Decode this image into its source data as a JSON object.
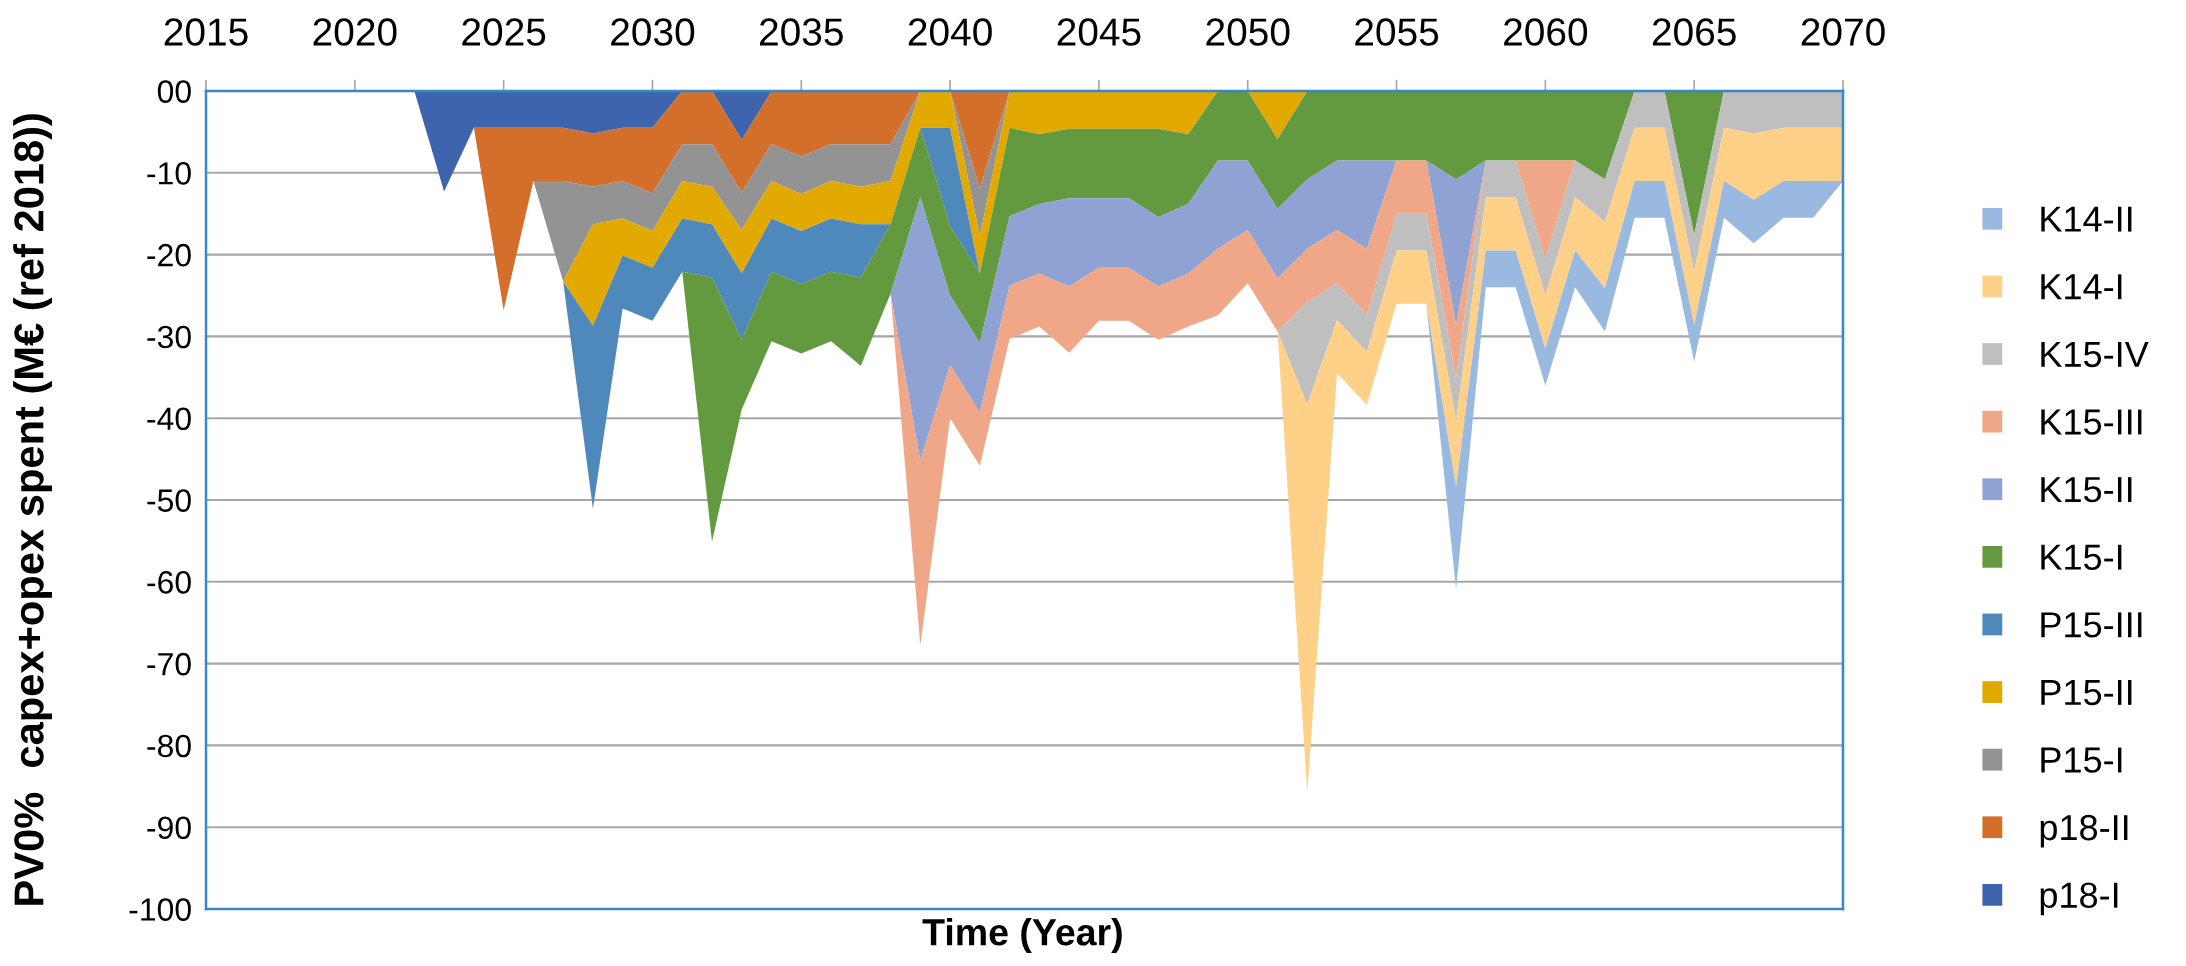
{
  "chart_data": {
    "type": "area",
    "stacked": true,
    "xlabel": "Time (Year)",
    "ylabel": "PV0%  capex+opex spent (M€ (ref 2018))",
    "x": [
      2022,
      2023,
      2024,
      2025,
      2026,
      2027,
      2028,
      2029,
      2030,
      2031,
      2032,
      2033,
      2034,
      2035,
      2036,
      2037,
      2038,
      2039,
      2040,
      2041,
      2042,
      2043,
      2044,
      2045,
      2046,
      2047,
      2048,
      2049,
      2050,
      2051,
      2052,
      2053,
      2054,
      2055,
      2056,
      2057,
      2058,
      2059,
      2060,
      2061,
      2062,
      2063,
      2064,
      2065,
      2066,
      2067,
      2068,
      2069,
      2070
    ],
    "xlim": [
      2015,
      2070
    ],
    "xticks": [
      2015,
      2020,
      2025,
      2030,
      2035,
      2040,
      2045,
      2050,
      2055,
      2060,
      2065,
      2070
    ],
    "ylim": [
      -100,
      0
    ],
    "yticks": [
      {
        "value": 0,
        "label": "00"
      },
      -10,
      -20,
      -30,
      -40,
      -50,
      -60,
      -70,
      -80,
      -90,
      -100
    ],
    "grid": "y",
    "legend": "right",
    "series": [
      {
        "name": "p18-I",
        "color": "#3d64ad",
        "values": [
          0,
          -12.3,
          -4.5,
          -4.5,
          -4.5,
          -4.5,
          -5.2,
          -4.5,
          -4.5,
          0,
          0,
          -6,
          0,
          null,
          null,
          null,
          null,
          null,
          null,
          null,
          null,
          null,
          null,
          null,
          null,
          null,
          null,
          null,
          null,
          null,
          null,
          null,
          null,
          null,
          null,
          null,
          null,
          null,
          null,
          null,
          null,
          null,
          null,
          null,
          null,
          null,
          null,
          null,
          null
        ]
      },
      {
        "name": "p18-II",
        "color": "#d36f2b",
        "values": [
          null,
          null,
          0,
          -22.3,
          -6.5,
          -6.5,
          -6.5,
          -6.5,
          -8,
          -6.5,
          -6.5,
          -6.4,
          -6.5,
          -8,
          -6.5,
          -6.5,
          -6.5,
          0,
          0,
          -11.9,
          0,
          null,
          null,
          null,
          null,
          null,
          null,
          null,
          null,
          null,
          null,
          null,
          null,
          null,
          null,
          null,
          null,
          null,
          null,
          null,
          null,
          null,
          null,
          null,
          null,
          null,
          null,
          null,
          null
        ]
      },
      {
        "name": "P15-I",
        "color": "#939393",
        "values": [
          null,
          null,
          null,
          null,
          0,
          -12.3,
          -4.6,
          -4.6,
          -4.6,
          -4.5,
          -5.2,
          -4.6,
          -4.5,
          -4.6,
          -4.5,
          -5.2,
          -4.5,
          0,
          0,
          -5.9,
          0,
          null,
          null,
          null,
          null,
          null,
          null,
          null,
          null,
          null,
          null,
          null,
          null,
          null,
          null,
          null,
          null,
          null,
          null,
          null,
          null,
          null,
          null,
          null,
          null,
          null,
          null,
          null,
          null
        ]
      },
      {
        "name": "P15-II",
        "color": "#e2aa00",
        "values": [
          null,
          null,
          null,
          null,
          null,
          0,
          -12.4,
          -4.5,
          -4.5,
          -4.6,
          -4.6,
          -5.3,
          -4.6,
          -4.5,
          -4.6,
          -4.6,
          -5.3,
          -4.5,
          -4.5,
          -4.5,
          -4.5,
          -5.3,
          -4.6,
          -4.6,
          -4.6,
          -4.6,
          -5.3,
          0,
          0,
          -5.9,
          0,
          null,
          null,
          null,
          null,
          null,
          null,
          null,
          null,
          null,
          null,
          null,
          null,
          null,
          null,
          null,
          null,
          null,
          null
        ]
      },
      {
        "name": "P15-III",
        "color": "#4f88bb",
        "values": [
          null,
          null,
          null,
          null,
          null,
          0,
          -22.4,
          -6.5,
          -6.5,
          -6.5,
          -6.5,
          -8.1,
          -6.5,
          -6.5,
          -6.5,
          -6.5,
          0,
          0,
          -12,
          0,
          null,
          null,
          null,
          null,
          null,
          null,
          null,
          null,
          null,
          null,
          null,
          null,
          null,
          null,
          null,
          null,
          null,
          null,
          null,
          null,
          null,
          null,
          null,
          null,
          null,
          null,
          null,
          null,
          null
        ]
      },
      {
        "name": "K15-I",
        "color": "#639a3f",
        "values": [
          null,
          null,
          null,
          null,
          null,
          null,
          null,
          null,
          null,
          0,
          -32.3,
          -8.5,
          -8.5,
          -8.5,
          -8.5,
          -10.8,
          -8.5,
          -8.5,
          -8.5,
          -8.5,
          -10.8,
          -8.5,
          -8.5,
          -8.5,
          -8.5,
          -10.8,
          -8.5,
          -8.5,
          -8.5,
          -8.5,
          -10.8,
          -8.5,
          -8.5,
          -8.5,
          -8.5,
          -10.8,
          -8.5,
          -8.5,
          -8.5,
          -8.5,
          -10.8,
          0,
          0,
          -17.6,
          0,
          null,
          null,
          null,
          null
        ]
      },
      {
        "name": "K15-II",
        "color": "#8fa2d4",
        "values": [
          null,
          null,
          null,
          null,
          null,
          null,
          null,
          null,
          null,
          null,
          null,
          null,
          null,
          null,
          null,
          null,
          0,
          -32.2,
          -8.5,
          -8.5,
          -8.5,
          -8.5,
          -10.8,
          -8.5,
          -8.5,
          -8.5,
          -8.5,
          -10.8,
          -8.5,
          -8.5,
          -8.5,
          -8.5,
          -10.8,
          0,
          0,
          -17.8,
          0,
          null,
          null,
          null,
          null,
          null,
          null,
          null,
          null,
          null,
          null,
          null,
          null
        ]
      },
      {
        "name": "K15-III",
        "color": "#f0a788",
        "values": [
          null,
          null,
          null,
          null,
          null,
          null,
          null,
          null,
          null,
          null,
          null,
          null,
          null,
          null,
          null,
          null,
          0,
          -22.6,
          -6.5,
          -6.5,
          -6.5,
          -6.5,
          -8.1,
          -6.5,
          -6.5,
          -6.5,
          -6.5,
          -8.1,
          -6.5,
          -6.5,
          -6.5,
          -6.5,
          -8.1,
          -6.5,
          -6.5,
          -6.5,
          0,
          0,
          -12,
          0,
          null,
          null,
          null,
          null,
          null,
          null,
          null,
          null,
          null
        ]
      },
      {
        "name": "K15-IV",
        "color": "#bfbfbf",
        "values": [
          null,
          null,
          null,
          null,
          null,
          null,
          null,
          null,
          null,
          null,
          null,
          null,
          null,
          null,
          null,
          null,
          null,
          null,
          null,
          null,
          null,
          null,
          null,
          null,
          null,
          null,
          null,
          null,
          null,
          0,
          -12.5,
          -4.5,
          -4.5,
          -4.5,
          -4.5,
          -5.2,
          -4.5,
          -4.5,
          -4.5,
          -4.5,
          -5.2,
          -4.5,
          -4.5,
          -4.5,
          -4.5,
          -5.2,
          -4.5,
          -4.5,
          -4.5
        ]
      },
      {
        "name": "K14-I",
        "color": "#ffd088",
        "values": [
          null,
          null,
          null,
          null,
          null,
          null,
          null,
          null,
          null,
          null,
          null,
          null,
          null,
          null,
          null,
          null,
          null,
          null,
          null,
          null,
          null,
          null,
          null,
          null,
          null,
          null,
          null,
          null,
          null,
          0,
          -47.5,
          -6.5,
          -6.5,
          -6.5,
          -6.5,
          -8.1,
          -6.5,
          -6.5,
          -6.5,
          -6.5,
          -8.1,
          -6.5,
          -6.5,
          -6.5,
          -6.5,
          -8.1,
          -6.5,
          -6.5,
          -6.5
        ]
      },
      {
        "name": "K14-II",
        "color": "#9ab9e0",
        "values": [
          null,
          null,
          null,
          null,
          null,
          null,
          null,
          null,
          null,
          null,
          null,
          null,
          null,
          null,
          null,
          null,
          null,
          null,
          null,
          null,
          null,
          null,
          null,
          null,
          null,
          null,
          null,
          null,
          null,
          null,
          null,
          null,
          null,
          null,
          0,
          -12.5,
          -4.5,
          -4.5,
          -4.5,
          -4.5,
          -5.3,
          -4.5,
          -4.5,
          -4.5,
          -4.5,
          -5.3,
          -4.5,
          -4.5,
          0
        ]
      }
    ]
  }
}
